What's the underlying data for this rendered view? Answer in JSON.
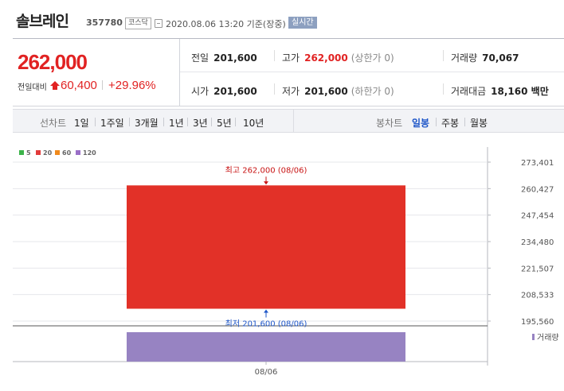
{
  "stock": {
    "name": "솔브레인",
    "code": "357780",
    "market": "코스닥",
    "datetime": "2020.08.06 13:20 기준(장중)",
    "realtime": "실시간"
  },
  "price": {
    "current": "262,000",
    "change_label": "전일대비",
    "change_amount": "60,400",
    "change_rate": "+29.96%"
  },
  "stats": {
    "prev_close": {
      "label": "전일",
      "value": "201,600"
    },
    "high": {
      "label": "고가",
      "value": "262,000",
      "note": "(상한가 0)"
    },
    "volume": {
      "label": "거래량",
      "value": "70,067"
    },
    "open": {
      "label": "시가",
      "value": "201,600"
    },
    "low": {
      "label": "저가",
      "value": "201,600",
      "note": "(하한가 0)"
    },
    "amount": {
      "label": "거래대금",
      "value": "18,160 백만"
    }
  },
  "periods": {
    "line_label": "선차트",
    "line_options": [
      "1일",
      "1주일",
      "3개월",
      "1년",
      "3년",
      "5년",
      "10년"
    ],
    "candle_label": "봉차트",
    "candle_options": [
      "일봉",
      "주봉",
      "월봉"
    ],
    "candle_active": "일봉"
  },
  "legend": {
    "ma": [
      {
        "label": "5",
        "color": "#3cb34a"
      },
      {
        "label": "20",
        "color": "#e23b3b"
      },
      {
        "label": "60",
        "color": "#f08a1c"
      },
      {
        "label": "120",
        "color": "#9a6fc7"
      }
    ],
    "volume_label": "거래량"
  },
  "colors": {
    "up": "#e12222",
    "candle": "#e23128",
    "volume": "#9783c2",
    "accent_blue": "#1e56c8"
  },
  "chart_data": {
    "type": "candlestick",
    "x": [
      "08/06"
    ],
    "open": [
      201600
    ],
    "high": [
      262000
    ],
    "low": [
      201600
    ],
    "close": [
      262000
    ],
    "volume": [
      70067
    ],
    "y_ticks": [
      "273,401",
      "260,427",
      "247,454",
      "234,480",
      "221,507",
      "208,533",
      "195,560"
    ],
    "ylim": [
      195560,
      273401
    ],
    "annotations": {
      "high_label": "최고 262,000 (08/06)",
      "low_label": "최저 201,600 (08/06)"
    },
    "volume_label": "거래량",
    "grid": true
  }
}
